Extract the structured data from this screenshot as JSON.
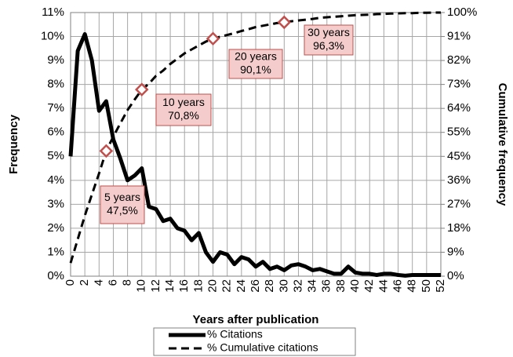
{
  "chart_data": {
    "type": "line",
    "xlabel": "Years after publication",
    "ylabel": "Frequency",
    "y2label": "Cumulative frequency",
    "x": [
      0,
      1,
      2,
      3,
      4,
      5,
      6,
      7,
      8,
      9,
      10,
      11,
      12,
      13,
      14,
      15,
      16,
      17,
      18,
      19,
      20,
      21,
      22,
      23,
      24,
      25,
      26,
      27,
      28,
      29,
      30,
      31,
      32,
      33,
      34,
      35,
      36,
      37,
      38,
      39,
      40,
      41,
      42,
      43,
      44,
      45,
      46,
      47,
      48,
      49,
      50,
      51,
      52
    ],
    "series": [
      {
        "name": "% Citations",
        "color": "#000000",
        "dash": false,
        "values": [
          5.0,
          9.4,
          10.1,
          9.0,
          6.9,
          7.3,
          5.7,
          4.9,
          4.0,
          4.2,
          4.5,
          2.9,
          2.8,
          2.3,
          2.4,
          2.0,
          1.9,
          1.5,
          1.8,
          1.0,
          0.6,
          1.0,
          0.9,
          0.5,
          0.8,
          0.7,
          0.4,
          0.6,
          0.3,
          0.4,
          0.25,
          0.45,
          0.5,
          0.4,
          0.25,
          0.3,
          0.2,
          0.1,
          0.1,
          0.4,
          0.15,
          0.1,
          0.1,
          0.05,
          0.1,
          0.1,
          0.05,
          0.02,
          0.05,
          0.05,
          0.05,
          0.05,
          0.05
        ]
      },
      {
        "name": "% Cumulative citations",
        "color": "#000000",
        "dash": true,
        "axis": "y2",
        "values": [
          5,
          14,
          23,
          31,
          39,
          47.5,
          53,
          58,
          63,
          67,
          70.8,
          73,
          76,
          78,
          80.5,
          82.5,
          84.5,
          86,
          87.5,
          89,
          90.1,
          90.8,
          91.5,
          92.2,
          93,
          93.7,
          94.5,
          95,
          95.5,
          96,
          96.3,
          96.7,
          97,
          97.3,
          97.6,
          98,
          98.2,
          98.4,
          98.6,
          98.8,
          99,
          99.1,
          99.2,
          99.4,
          99.5,
          99.6,
          99.7,
          99.8,
          99.8,
          99.9,
          99.9,
          100,
          100
        ]
      }
    ],
    "annotations": [
      {
        "x": 5,
        "value": 47.5,
        "text": [
          "5 years",
          "47,5%"
        ]
      },
      {
        "x": 10,
        "value": 70.8,
        "text": [
          "10 years",
          "70,8%"
        ]
      },
      {
        "x": 20,
        "value": 90.1,
        "text": [
          "20 years",
          "90,1%"
        ]
      },
      {
        "x": 30,
        "value": 96.3,
        "text": [
          "30 years",
          "96,3%"
        ]
      }
    ],
    "xlim": [
      0,
      52
    ],
    "xticks": [
      0,
      2,
      4,
      6,
      8,
      10,
      12,
      14,
      16,
      18,
      20,
      22,
      24,
      26,
      28,
      30,
      32,
      34,
      36,
      38,
      40,
      42,
      44,
      46,
      48,
      50,
      52
    ],
    "ylim": [
      0,
      11
    ],
    "yticks": [
      {
        "value": 0,
        "label": "0%"
      },
      {
        "value": 1,
        "label": "1%"
      },
      {
        "value": 2,
        "label": "2%"
      },
      {
        "value": 3,
        "label": "3%"
      },
      {
        "value": 4,
        "label": "4%"
      },
      {
        "value": 5,
        "label": "5%"
      },
      {
        "value": 6,
        "label": "6%"
      },
      {
        "value": 7,
        "label": "7%"
      },
      {
        "value": 8,
        "label": "8%"
      },
      {
        "value": 9,
        "label": "9%"
      },
      {
        "value": 10,
        "label": "10%"
      },
      {
        "value": 11,
        "label": "11%"
      }
    ],
    "y2lim": [
      0,
      100
    ],
    "y2ticks": [
      {
        "value": 0,
        "label": "0%"
      },
      {
        "value": 9.09,
        "label": "9%"
      },
      {
        "value": 18.18,
        "label": "18%"
      },
      {
        "value": 27.27,
        "label": "27%"
      },
      {
        "value": 36.36,
        "label": "36%"
      },
      {
        "value": 45.45,
        "label": "45%"
      },
      {
        "value": 54.55,
        "label": "55%"
      },
      {
        "value": 63.64,
        "label": "64%"
      },
      {
        "value": 72.73,
        "label": "73%"
      },
      {
        "value": 81.82,
        "label": "82%"
      },
      {
        "value": 90.91,
        "label": "91%"
      },
      {
        "value": 100,
        "label": "100%"
      }
    ],
    "grid": true,
    "legend": "bottom",
    "annotation_color": "#c0504d",
    "annotation_fill": "#f4cccc"
  }
}
